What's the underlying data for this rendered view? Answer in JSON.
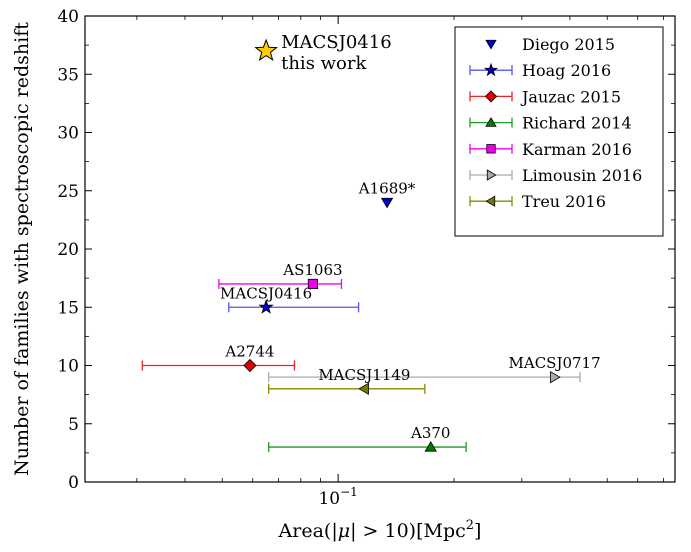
{
  "chart_data": {
    "type": "scatter",
    "title": "",
    "xlabel": "Area(|μ| > 10)[Mpc²]",
    "xlabel_parts": {
      "pre": "Area(|",
      "mu": "μ",
      "post": "| > 10)[Mpc",
      "sup": "2",
      "end": "]"
    },
    "ylabel": "Number of families with spectroscopic redshift",
    "xscale": "log",
    "xlim": [
      0.022,
      0.75
    ],
    "ylim": [
      0,
      40
    ],
    "yticks": [
      0,
      5,
      10,
      15,
      20,
      25,
      30,
      35,
      40
    ],
    "yticklabels": [
      "0",
      "5",
      "10",
      "15",
      "20",
      "25",
      "30",
      "35",
      "40"
    ],
    "xticks_major": [
      0.1
    ],
    "xticklabels": [
      {
        "base": "10",
        "exp": "−1"
      }
    ],
    "xticks_minor": [
      0.03,
      0.04,
      0.05,
      0.06,
      0.07,
      0.08,
      0.09,
      0.2,
      0.3,
      0.4,
      0.5,
      0.6,
      0.7
    ],
    "grid": false,
    "legend_position": "top-right",
    "series": [
      {
        "name": "Diego 2015",
        "marker": "triangle-down",
        "color": "#0000cc",
        "points": [
          {
            "x": 0.134,
            "y": 24,
            "xerr": null,
            "label": "A1689*"
          }
        ]
      },
      {
        "name": "Hoag 2016",
        "marker": "star",
        "color": "#0000cc",
        "errcolor": "#5555ee",
        "points": [
          {
            "x": 0.065,
            "y": 15,
            "xerr": [
              0.052,
              0.113
            ],
            "label": "MACSJ0416"
          }
        ]
      },
      {
        "name": "Jauzac 2015",
        "marker": "diamond",
        "color": "#e00000",
        "errcolor": "#ee2222",
        "points": [
          {
            "x": 0.059,
            "y": 10,
            "xerr": [
              0.031,
              0.077
            ],
            "label": "A2744"
          }
        ]
      },
      {
        "name": "Richard 2014",
        "marker": "triangle-up",
        "color": "#007a00",
        "errcolor": "#229922",
        "points": [
          {
            "x": 0.174,
            "y": 3,
            "xerr": [
              0.066,
              0.215
            ],
            "label": "A370"
          }
        ]
      },
      {
        "name": "Karman 2016",
        "marker": "square",
        "color": "#ee00ee",
        "errcolor": "#ee00ee",
        "points": [
          {
            "x": 0.086,
            "y": 17,
            "xerr": [
              0.049,
              0.102
            ],
            "label": "AS1063"
          }
        ]
      },
      {
        "name": "Limousin 2016",
        "marker": "triangle-right",
        "color": "#aaaaaa",
        "errcolor": "#aaaaaa",
        "points": [
          {
            "x": 0.365,
            "y": 9,
            "xerr": [
              0.066,
              0.425
            ],
            "label": "MACSJ0717"
          }
        ]
      },
      {
        "name": "Treu 2016",
        "marker": "triangle-left",
        "color": "#777700",
        "errcolor": "#888800",
        "points": [
          {
            "x": 0.117,
            "y": 8,
            "xerr": [
              0.066,
              0.168
            ],
            "label": "MACSJ1149"
          }
        ]
      }
    ],
    "highlight": {
      "x": 0.065,
      "y": 37,
      "marker": "star",
      "color": "#ffcc00",
      "label_line1": "MACSJ0416",
      "label_line2": "this work"
    }
  }
}
